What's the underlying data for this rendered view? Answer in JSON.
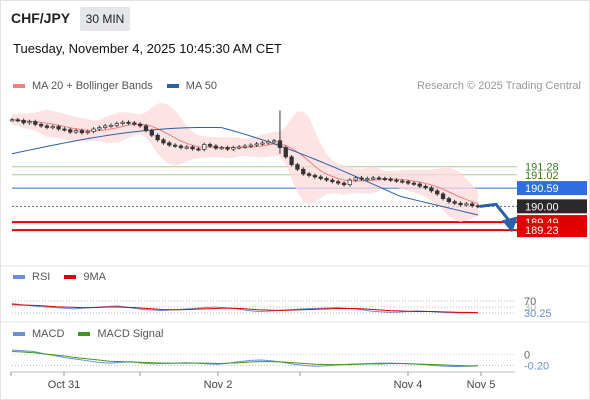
{
  "header": {
    "symbol": "CHF/JPY",
    "interval": "30 MIN",
    "timestamp": "Tuesday, November 4, 2025 10:45:30 AM CET",
    "credit": "Research © 2025 Trading Central"
  },
  "legend": {
    "main": [
      {
        "label": "MA 20 + Bollinger Bands",
        "color": "#f08080"
      },
      {
        "label": "MA 50",
        "color": "#2b5fa8"
      }
    ],
    "rsi": [
      {
        "label": "RSI",
        "color": "#6b8fd6"
      },
      {
        "label": "9MA",
        "color": "#e00000"
      }
    ],
    "macd": [
      {
        "label": "MACD",
        "color": "#6b8fd6"
      },
      {
        "label": "MACD Signal",
        "color": "#3a9a20"
      }
    ]
  },
  "colors": {
    "resistance_green": "#a8cc88",
    "pivot_blue": "#2f6ee0",
    "support_red": "#e00000",
    "price_dark": "#2a2a2a",
    "forecast_arrow": "#2b5fa8",
    "candle": "#333333",
    "band_fill": "#fcd9d9"
  },
  "chart_data": [
    {
      "type": "candlestick",
      "pane": "price",
      "ylim": [
        188.2,
        193.6
      ],
      "x_ticks": [
        "Oct 31",
        "Nov 2",
        "Nov 4",
        "Nov 5"
      ],
      "levels": [
        {
          "label": "191.28",
          "value": 191.28,
          "kind": "resistance"
        },
        {
          "label": "191.02",
          "value": 191.02,
          "kind": "resistance"
        },
        {
          "label": "190.59",
          "value": 190.59,
          "kind": "pivot"
        },
        {
          "label": "190.00",
          "value": 190.0,
          "kind": "last_price"
        },
        {
          "label": "189.49",
          "value": 189.49,
          "kind": "support"
        },
        {
          "label": "189.23",
          "value": 189.23,
          "kind": "support"
        }
      ],
      "close_approx": [
        192.8,
        192.78,
        192.7,
        192.74,
        192.65,
        192.6,
        192.55,
        192.58,
        192.5,
        192.48,
        192.4,
        192.45,
        192.38,
        192.42,
        192.5,
        192.55,
        192.6,
        192.62,
        192.68,
        192.72,
        192.7,
        192.66,
        192.6,
        192.45,
        192.3,
        192.15,
        192.05,
        191.98,
        191.95,
        191.9,
        191.92,
        191.86,
        191.84,
        192.0,
        191.95,
        191.88,
        191.9,
        191.85,
        191.9,
        191.92,
        191.95,
        191.98,
        192.02,
        192.05,
        192.1,
        192.12,
        191.9,
        191.6,
        191.35,
        191.2,
        191.05,
        191.0,
        190.95,
        190.9,
        190.85,
        190.8,
        190.75,
        190.7,
        190.85,
        190.92,
        190.88,
        190.9,
        190.92,
        190.9,
        190.88,
        190.85,
        190.82,
        190.8,
        190.75,
        190.72,
        190.65,
        190.6,
        190.5,
        190.4,
        190.25,
        190.15,
        190.1,
        190.05,
        190.08,
        190.02,
        190.0
      ],
      "ma50_approx": [
        191.7,
        192.55
      ],
      "forecast": {
        "from": 190.0,
        "to": 189.35
      }
    },
    {
      "type": "line",
      "pane": "RSI",
      "ylim": [
        0,
        100
      ],
      "tick_labels": [
        "70",
        "30",
        "30.25"
      ],
      "series": [
        {
          "name": "RSI",
          "values": [
            62,
            58,
            55,
            52,
            50,
            48,
            46,
            44,
            46,
            48,
            50,
            52,
            54,
            50,
            45,
            42,
            40,
            38,
            40,
            42,
            44,
            46,
            48,
            50,
            48,
            46,
            42,
            38,
            35,
            36,
            38,
            40,
            42,
            44,
            45,
            46,
            47,
            48,
            46,
            44,
            40,
            36,
            34,
            32,
            33,
            35,
            37,
            36,
            34,
            32,
            31,
            30,
            31,
            30.25
          ]
        },
        {
          "name": "9MA",
          "values": [
            58,
            57,
            56,
            55,
            53,
            51,
            50,
            49,
            48,
            48,
            49,
            50,
            50,
            49,
            48,
            46,
            44,
            42,
            41,
            41,
            42,
            43,
            44,
            45,
            46,
            46,
            45,
            43,
            41,
            40,
            39,
            39,
            40,
            41,
            42,
            43,
            44,
            45,
            45,
            45,
            44,
            42,
            40,
            38,
            37,
            36,
            35,
            35,
            35,
            34,
            33,
            32,
            32,
            31.5
          ]
        }
      ]
    },
    {
      "type": "line",
      "pane": "MACD",
      "ylim": [
        -0.45,
        0.25
      ],
      "tick_labels": [
        "0",
        "-0.20"
      ],
      "series": [
        {
          "name": "MACD",
          "values": [
            0.12,
            0.1,
            0.08,
            0.02,
            -0.03,
            -0.08,
            -0.12,
            -0.16,
            -0.2,
            -0.22,
            -0.2,
            -0.18,
            -0.22,
            -0.24,
            -0.23,
            -0.22,
            -0.21,
            -0.22,
            -0.24,
            -0.25,
            -0.22,
            -0.18,
            -0.15,
            -0.14,
            -0.16,
            -0.2,
            -0.25,
            -0.28,
            -0.3,
            -0.29,
            -0.27,
            -0.25,
            -0.24,
            -0.23,
            -0.22,
            -0.22,
            -0.23,
            -0.24,
            -0.26,
            -0.28,
            -0.3,
            -0.31,
            -0.3,
            -0.29
          ]
        },
        {
          "name": "MACD Signal",
          "values": [
            0.08,
            0.07,
            0.05,
            0.02,
            -0.01,
            -0.04,
            -0.08,
            -0.11,
            -0.14,
            -0.17,
            -0.18,
            -0.19,
            -0.2,
            -0.21,
            -0.22,
            -0.22,
            -0.22,
            -0.22,
            -0.22,
            -0.23,
            -0.22,
            -0.21,
            -0.19,
            -0.18,
            -0.18,
            -0.19,
            -0.21,
            -0.23,
            -0.25,
            -0.26,
            -0.26,
            -0.26,
            -0.25,
            -0.24,
            -0.24,
            -0.23,
            -0.23,
            -0.24,
            -0.25,
            -0.26,
            -0.27,
            -0.28,
            -0.29,
            -0.29
          ]
        }
      ]
    }
  ]
}
